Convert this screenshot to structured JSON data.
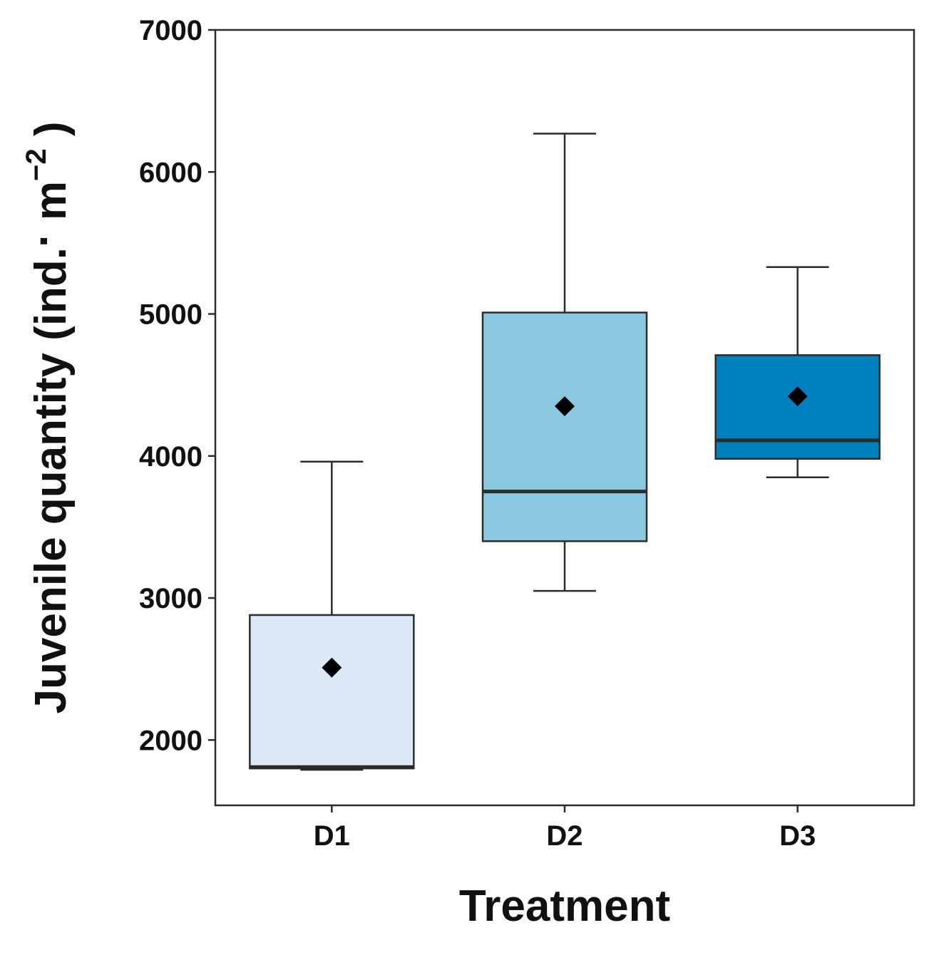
{
  "chart_data": {
    "type": "box",
    "title": "",
    "xlabel": "Treatment",
    "ylabel": {
      "main": "Juvenile quantity (ind.",
      "middle_dot": "·",
      "unit": " m",
      "exponent": "−2",
      "close": " )"
    },
    "ylim": [
      1540,
      7000
    ],
    "yticks": [
      2000,
      3000,
      4000,
      5000,
      6000,
      7000
    ],
    "ytick_labels": [
      "2000",
      "3000",
      "4000",
      "5000",
      "6000",
      "7000"
    ],
    "categories": [
      "D1",
      "D2",
      "D3"
    ],
    "boxes": [
      {
        "category": "D1",
        "whisker_low": 1790,
        "q1": 1800,
        "median": 1810,
        "q3": 2880,
        "whisker_high": 3960,
        "mean": 2510,
        "fill": "#dbeaf6"
      },
      {
        "category": "D2",
        "whisker_low": 3050,
        "q1": 3400,
        "median": 3750,
        "q3": 5010,
        "whisker_high": 6270,
        "mean": 4350,
        "fill": "#8bc9e1"
      },
      {
        "category": "D3",
        "whisker_low": 3850,
        "q1": 3980,
        "median": 4110,
        "q3": 4710,
        "whisker_high": 5330,
        "mean": 4420,
        "fill": "#0081bf"
      }
    ],
    "colors": {
      "line": "#2b2b2b",
      "mean_marker": "#000000",
      "background": "#ffffff"
    }
  }
}
